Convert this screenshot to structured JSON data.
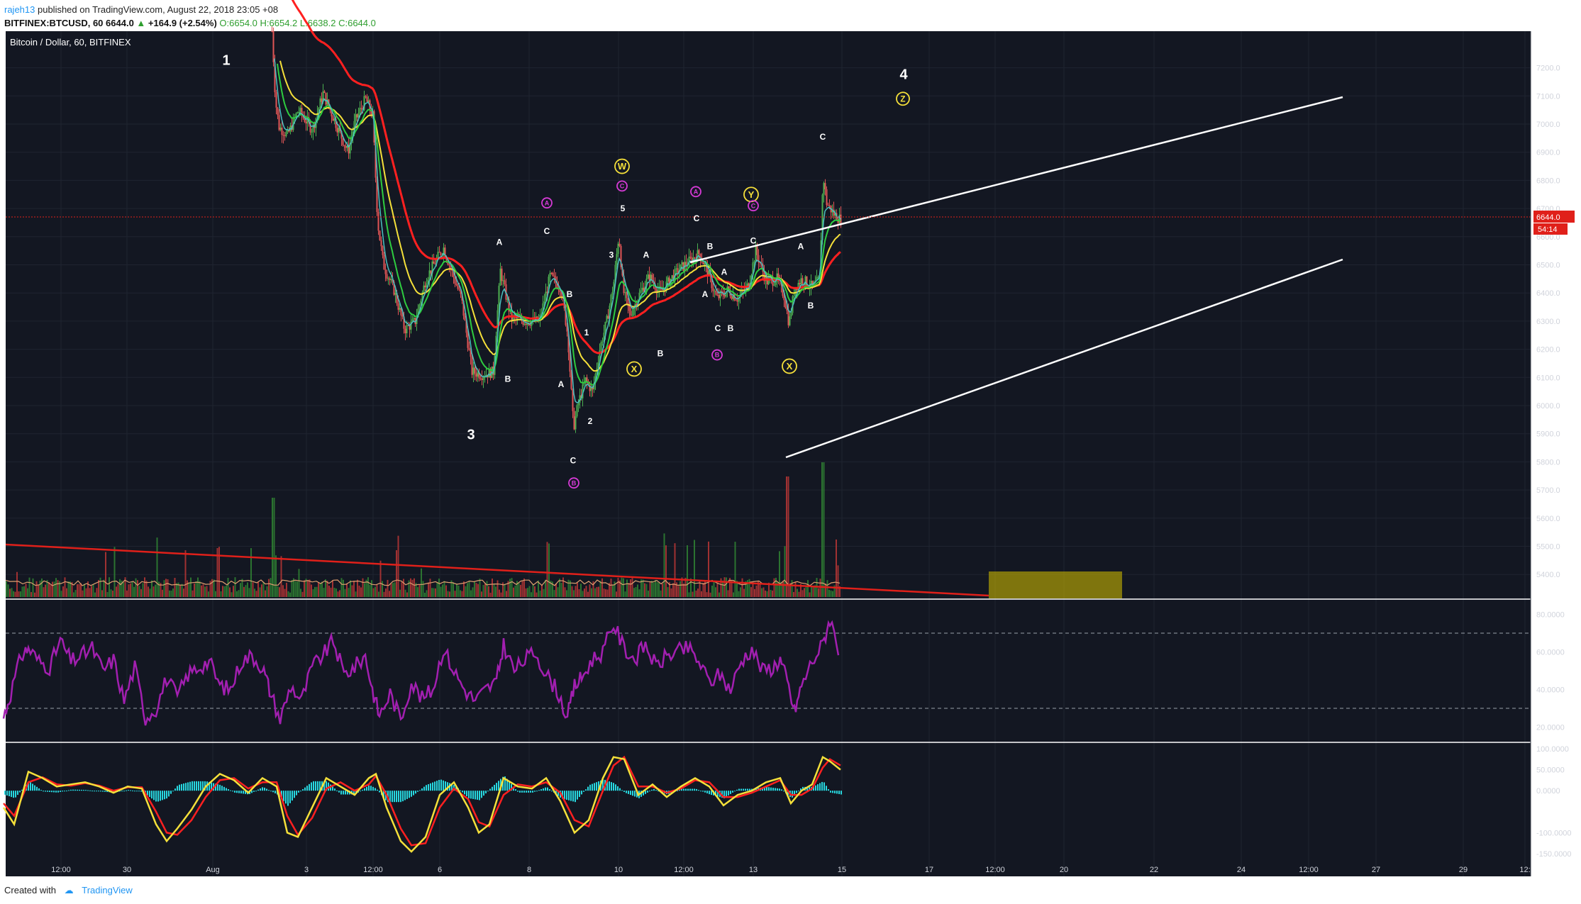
{
  "header": {
    "user": "rajeh13",
    "published": " published on TradingView.com, August 22, 2018 23:05 +08",
    "symbol": "BITFINEX:BTCUSD, 60",
    "last": "6644.0",
    "change": "+164.9 (+2.54%)",
    "ohlc": "O:6654.0 H:6654.2 L:6638.2 C:6644.0"
  },
  "chart_data": {
    "type": "candlestick",
    "title": "Bitcoin / Dollar, 60, BITFINEX",
    "x_ticks": [
      "12:00",
      "30",
      "Aug",
      "3",
      "12:00",
      "6",
      "8",
      "10",
      "12:00",
      "13",
      "15",
      "17",
      "12:00",
      "20",
      "22",
      "24",
      "12:00",
      "27",
      "29",
      "12:"
    ],
    "y_ticks": [
      "7200.0",
      "7100.0",
      "7000.0",
      "6900.0",
      "6800.0",
      "6700.0",
      "6600.0",
      "6500.0",
      "6400.0",
      "6300.0",
      "6200.0",
      "6100.0",
      "6000.0",
      "5900.0",
      "5800.0",
      "5700.0",
      "5600.0",
      "5500.0",
      "5400.0"
    ],
    "ylim": [
      5330,
      7330
    ],
    "current_price": "6644.0",
    "countdown": "54:14",
    "price_path_x": [
      383,
      388,
      393,
      405,
      420,
      440,
      455,
      470,
      490,
      500,
      515,
      525,
      532,
      540,
      555,
      570,
      585,
      600,
      615,
      625,
      640,
      650,
      665,
      680,
      695,
      705,
      720,
      740,
      760,
      775,
      790,
      800,
      808,
      815,
      825,
      835,
      845,
      855,
      865,
      872,
      878,
      888,
      900,
      915,
      930,
      945,
      960,
      975,
      985,
      995,
      1010,
      1025,
      1040,
      1055,
      1065,
      1080,
      1095,
      1105,
      1112,
      1120,
      1130,
      1145,
      1155,
      1160,
      1165,
      1175,
      1185
    ],
    "price_path_y": [
      7330,
      7080,
      6990,
      6960,
      7050,
      6980,
      7110,
      7020,
      6900,
      7010,
      7090,
      7030,
      6650,
      6500,
      6410,
      6270,
      6300,
      6450,
      6520,
      6560,
      6450,
      6380,
      6120,
      6110,
      6120,
      6480,
      6310,
      6300,
      6300,
      6460,
      6420,
      6250,
      5920,
      6010,
      6090,
      6050,
      6200,
      6300,
      6440,
      6610,
      6410,
      6320,
      6390,
      6460,
      6400,
      6450,
      6490,
      6520,
      6540,
      6490,
      6380,
      6410,
      6380,
      6430,
      6550,
      6440,
      6450,
      6390,
      6290,
      6420,
      6450,
      6420,
      6450,
      6820,
      6720,
      6680,
      6660
    ],
    "wave_labels": [
      {
        "t": "1",
        "x": 319,
        "p": 7210,
        "c": "#ffffff",
        "s": 20
      },
      {
        "t": "3",
        "x": 664,
        "p": 5880,
        "c": "#ffffff",
        "s": 20
      },
      {
        "t": "4",
        "x": 1274,
        "p": 7160,
        "c": "#ffffff",
        "s": 20
      },
      {
        "t": "A",
        "x": 704,
        "p": 6570,
        "c": "#ffffff",
        "s": 12
      },
      {
        "t": "C",
        "x": 771,
        "p": 6610,
        "c": "#ffffff",
        "s": 12
      },
      {
        "t": "B",
        "x": 716,
        "p": 6085,
        "c": "#ffffff",
        "s": 12
      },
      {
        "t": "B",
        "x": 803,
        "p": 6385,
        "c": "#ffffff",
        "s": 12
      },
      {
        "t": "A",
        "x": 791,
        "p": 6065,
        "c": "#ffffff",
        "s": 12
      },
      {
        "t": "C",
        "x": 808,
        "p": 5795,
        "c": "#ffffff",
        "s": 12
      },
      {
        "t": "1",
        "x": 827,
        "p": 6250,
        "c": "#ffffff",
        "s": 12
      },
      {
        "t": "2",
        "x": 832,
        "p": 5935,
        "c": "#ffffff",
        "s": 12
      },
      {
        "t": "3",
        "x": 862,
        "p": 6525,
        "c": "#ffffff",
        "s": 12
      },
      {
        "t": "5",
        "x": 878,
        "p": 6690,
        "c": "#ffffff",
        "s": 12
      },
      {
        "t": "A",
        "x": 911,
        "p": 6525,
        "c": "#ffffff",
        "s": 12
      },
      {
        "t": "B",
        "x": 931,
        "p": 6175,
        "c": "#ffffff",
        "s": 12
      },
      {
        "t": "C",
        "x": 982,
        "p": 6655,
        "c": "#ffffff",
        "s": 12
      },
      {
        "t": "B",
        "x": 1001,
        "p": 6555,
        "c": "#ffffff",
        "s": 12
      },
      {
        "t": "A",
        "x": 1021,
        "p": 6465,
        "c": "#ffffff",
        "s": 12
      },
      {
        "t": "A",
        "x": 994,
        "p": 6385,
        "c": "#ffffff",
        "s": 12
      },
      {
        "t": "C",
        "x": 1012,
        "p": 6265,
        "c": "#ffffff",
        "s": 12
      },
      {
        "t": "B",
        "x": 1030,
        "p": 6265,
        "c": "#ffffff",
        "s": 12
      },
      {
        "t": "C",
        "x": 1062,
        "p": 6575,
        "c": "#ffffff",
        "s": 12
      },
      {
        "t": "A",
        "x": 1129,
        "p": 6555,
        "c": "#ffffff",
        "s": 12
      },
      {
        "t": "B",
        "x": 1143,
        "p": 6345,
        "c": "#ffffff",
        "s": 12
      },
      {
        "t": "C",
        "x": 1160,
        "p": 6945,
        "c": "#ffffff",
        "s": 12
      }
    ],
    "circle_labels": [
      {
        "t": "W",
        "x": 877,
        "p": 6850,
        "c": "#f5e03a",
        "r": 10
      },
      {
        "t": "X",
        "x": 894,
        "p": 6130,
        "c": "#f5e03a",
        "r": 10
      },
      {
        "t": "Y",
        "x": 1059,
        "p": 6750,
        "c": "#f5e03a",
        "r": 10
      },
      {
        "t": "X",
        "x": 1113,
        "p": 6140,
        "c": "#f5e03a",
        "r": 10
      },
      {
        "t": "Z",
        "x": 1273,
        "p": 7090,
        "c": "#f5e03a",
        "r": 9
      },
      {
        "t": "A",
        "x": 771,
        "p": 6720,
        "c": "#d63ad6",
        "r": 7
      },
      {
        "t": "C",
        "x": 877,
        "p": 6780,
        "c": "#d63ad6",
        "r": 7
      },
      {
        "t": "A",
        "x": 981,
        "p": 6760,
        "c": "#d63ad6",
        "r": 7
      },
      {
        "t": "C",
        "x": 1062,
        "p": 6710,
        "c": "#d63ad6",
        "r": 7
      },
      {
        "t": "B",
        "x": 1011,
        "p": 6180,
        "c": "#d63ad6",
        "r": 7
      },
      {
        "t": "B",
        "x": 809,
        "p": 5725,
        "c": "#d63ad6",
        "r": 7
      }
    ],
    "rsi": {
      "ylim": [
        13,
        87
      ],
      "ticks": [
        "80.0000",
        "60.0000",
        "40.0000",
        "20.0000"
      ],
      "bands": [
        70,
        30
      ],
      "x": [
        5,
        15,
        30,
        40,
        55,
        70,
        85,
        100,
        115,
        130,
        145,
        160,
        175,
        190,
        205,
        220,
        235,
        250,
        265,
        280,
        295,
        310,
        325,
        340,
        355,
        370,
        380,
        395,
        410,
        425,
        440,
        455,
        470,
        485,
        500,
        515,
        525,
        535,
        550,
        565,
        580,
        595,
        610,
        625,
        640,
        655,
        670,
        685,
        700,
        710,
        725,
        740,
        755,
        770,
        785,
        800,
        810,
        820,
        835,
        850,
        865,
        880,
        895,
        910,
        925,
        940,
        955,
        970,
        985,
        1000,
        1015,
        1030,
        1045,
        1060,
        1075,
        1090,
        1100,
        1110,
        1120,
        1130,
        1145,
        1160,
        1170,
        1185
      ],
      "v": [
        25,
        38,
        58,
        62,
        55,
        52,
        66,
        55,
        58,
        62,
        50,
        56,
        34,
        52,
        25,
        30,
        46,
        36,
        48,
        52,
        55,
        42,
        40,
        55,
        58,
        52,
        40,
        24,
        42,
        34,
        52,
        58,
        66,
        48,
        52,
        58,
        40,
        26,
        38,
        24,
        44,
        35,
        40,
        62,
        50,
        40,
        34,
        40,
        44,
        64,
        50,
        56,
        60,
        48,
        40,
        25,
        42,
        46,
        56,
        60,
        75,
        62,
        56,
        64,
        52,
        58,
        60,
        62,
        55,
        44,
        48,
        40,
        55,
        62,
        50,
        52,
        56,
        44,
        28,
        42,
        55,
        64,
        78,
        58
      ]
    },
    "macd": {
      "ylim": [
        -160,
        110
      ],
      "ticks": [
        "100.0000",
        "50.0000",
        "0.0000",
        "-100.0000",
        "-150.0000"
      ],
      "x": [
        5,
        20,
        40,
        60,
        80,
        100,
        120,
        140,
        160,
        180,
        200,
        220,
        235,
        250,
        270,
        290,
        310,
        330,
        350,
        370,
        390,
        405,
        420,
        440,
        460,
        480,
        500,
        520,
        530,
        545,
        565,
        580,
        600,
        620,
        640,
        660,
        675,
        690,
        710,
        730,
        750,
        770,
        790,
        810,
        830,
        850,
        865,
        880,
        900,
        920,
        940,
        960,
        980,
        1000,
        1020,
        1040,
        1060,
        1080,
        1100,
        1115,
        1130,
        1145,
        1160,
        1170,
        1185
      ],
      "macd": [
        -40,
        -80,
        45,
        30,
        10,
        15,
        20,
        10,
        -5,
        10,
        5,
        -80,
        -120,
        -90,
        -45,
        10,
        40,
        25,
        -5,
        30,
        10,
        -100,
        -110,
        -40,
        30,
        10,
        -10,
        30,
        40,
        -40,
        -120,
        -145,
        -110,
        -10,
        20,
        -40,
        -100,
        -80,
        30,
        10,
        5,
        30,
        -25,
        -100,
        -70,
        30,
        80,
        75,
        -10,
        15,
        -15,
        10,
        30,
        10,
        -35,
        -10,
        0,
        20,
        30,
        -30,
        0,
        15,
        80,
        70,
        50
      ],
      "signal": [
        -30,
        -60,
        20,
        32,
        15,
        12,
        18,
        12,
        0,
        8,
        8,
        -50,
        -100,
        -105,
        -70,
        -15,
        25,
        30,
        5,
        20,
        20,
        -60,
        -105,
        -65,
        5,
        20,
        0,
        15,
        35,
        -10,
        -90,
        -130,
        -125,
        -40,
        5,
        -20,
        -75,
        -85,
        -10,
        15,
        10,
        20,
        -5,
        -70,
        -85,
        0,
        60,
        80,
        10,
        10,
        -5,
        5,
        25,
        20,
        -15,
        -15,
        -5,
        10,
        25,
        -10,
        -10,
        5,
        55,
        75,
        60
      ]
    }
  },
  "footer": {
    "created": "Created with",
    "brand": "TradingView"
  }
}
